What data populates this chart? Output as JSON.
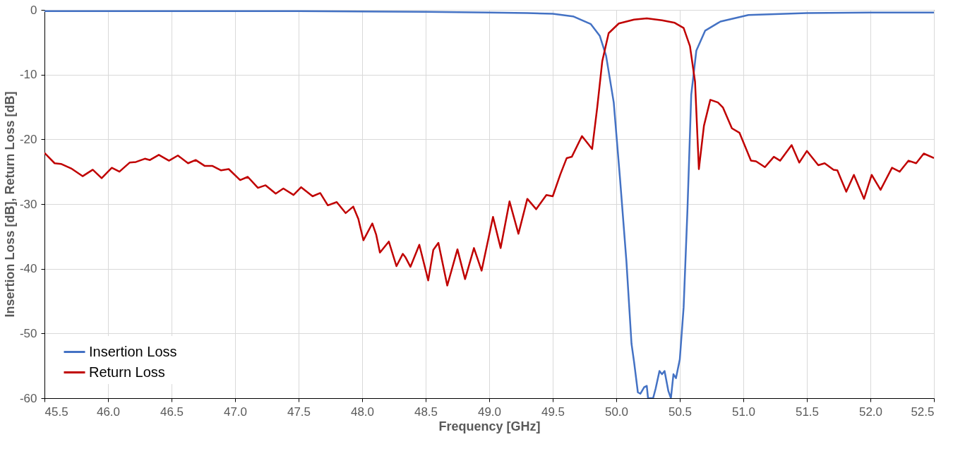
{
  "chart_data": {
    "type": "line",
    "xlabel": "Frequency [GHz]",
    "ylabel": "Insertion Loss [dB], Return Loss [dB]",
    "xlim": [
      45.5,
      52.5
    ],
    "ylim": [
      -60,
      0
    ],
    "xticks": [
      45.5,
      {
        "value": 46,
        "label": "46.0"
      },
      46.5,
      {
        "value": 47,
        "label": "47.0"
      },
      47.5,
      {
        "value": 48,
        "label": "48.0"
      },
      48.5,
      {
        "value": 49,
        "label": "49.0"
      },
      49.5,
      {
        "value": 50,
        "label": "50.0"
      },
      50.5,
      {
        "value": 51,
        "label": "51.0"
      },
      51.5,
      {
        "value": 52,
        "label": "52.0"
      },
      52.5
    ],
    "yticks": [
      -60,
      -50,
      -40,
      -30,
      -20,
      -10,
      0
    ],
    "grid": true,
    "legend": "bottom left",
    "line_style": "solid",
    "marker": "none",
    "series": [
      {
        "name": "Insertion Loss",
        "color": "#4472c4",
        "x": [
          45.5,
          46.5,
          47.5,
          48.5,
          49.0,
          49.3,
          49.5,
          49.66,
          49.8,
          49.87,
          49.92,
          49.98,
          50.03,
          50.08,
          50.12,
          50.14,
          50.17,
          50.19,
          50.22,
          50.24,
          50.25,
          50.29,
          50.31,
          50.34,
          50.36,
          50.38,
          50.41,
          50.43,
          50.45,
          50.47,
          50.5,
          50.53,
          50.56,
          50.59,
          50.63,
          50.7,
          50.82,
          51.04,
          51.5,
          52.0,
          52.5
        ],
        "values": [
          -0.2,
          -0.2,
          -0.2,
          -0.3,
          -0.4,
          -0.5,
          -0.6,
          -1.0,
          -2.2,
          -4.0,
          -7.1,
          -14.3,
          -26.2,
          -38.9,
          -51.6,
          -54.4,
          -59.1,
          -59.3,
          -58.3,
          -58.1,
          -60,
          -60,
          -58.5,
          -55.8,
          -56.3,
          -55.8,
          -58.9,
          -60,
          -56.3,
          -56.9,
          -54.0,
          -46.0,
          -31.0,
          -13.1,
          -6.3,
          -3.2,
          -1.8,
          -0.8,
          -0.5,
          -0.4,
          -0.4
        ]
      },
      {
        "name": "Return Loss",
        "color": "#c00000",
        "x": [
          45.5,
          45.58,
          45.63,
          45.71,
          45.8,
          45.88,
          45.95,
          46.03,
          46.09,
          46.17,
          46.22,
          46.29,
          46.33,
          46.4,
          46.48,
          46.55,
          46.63,
          46.69,
          46.76,
          46.82,
          46.89,
          46.95,
          47.04,
          47.1,
          47.18,
          47.24,
          47.32,
          47.38,
          47.46,
          47.52,
          47.61,
          47.67,
          47.73,
          47.8,
          47.87,
          47.93,
          47.97,
          48.01,
          48.08,
          48.11,
          48.14,
          48.21,
          48.27,
          48.32,
          48.34,
          48.38,
          48.45,
          48.52,
          48.56,
          48.6,
          48.67,
          48.75,
          48.81,
          48.88,
          48.94,
          49.03,
          49.09,
          49.16,
          49.23,
          49.3,
          49.37,
          49.45,
          49.5,
          49.56,
          49.61,
          49.65,
          49.73,
          49.81,
          49.85,
          49.89,
          49.94,
          50.02,
          50.14,
          50.24,
          50.36,
          50.46,
          50.53,
          50.58,
          50.62,
          50.65,
          50.69,
          50.74,
          50.8,
          50.84,
          50.91,
          50.97,
          51.06,
          51.1,
          51.17,
          51.24,
          51.29,
          51.38,
          51.44,
          51.5,
          51.59,
          51.64,
          51.71,
          51.74,
          51.81,
          51.87,
          51.95,
          52.01,
          52.08,
          52.17,
          52.23,
          52.3,
          52.36,
          52.42,
          52.5
        ],
        "values": [
          -22.1,
          -23.7,
          -23.8,
          -24.5,
          -25.7,
          -24.7,
          -26.0,
          -24.4,
          -25.0,
          -23.6,
          -23.5,
          -23.0,
          -23.2,
          -22.4,
          -23.3,
          -22.5,
          -23.7,
          -23.2,
          -24.1,
          -24.1,
          -24.8,
          -24.6,
          -26.3,
          -25.8,
          -27.5,
          -27.1,
          -28.4,
          -27.6,
          -28.6,
          -27.4,
          -28.8,
          -28.3,
          -30.2,
          -29.7,
          -31.4,
          -30.4,
          -32.3,
          -35.6,
          -33.0,
          -34.7,
          -37.5,
          -35.8,
          -39.6,
          -37.7,
          -38.2,
          -39.7,
          -36.3,
          -41.8,
          -37.1,
          -36.0,
          -42.6,
          -37.0,
          -41.6,
          -36.8,
          -40.3,
          -32.0,
          -36.8,
          -29.6,
          -34.6,
          -29.2,
          -30.8,
          -28.6,
          -28.8,
          -25.4,
          -22.9,
          -22.7,
          -19.5,
          -21.5,
          -15.1,
          -7.9,
          -3.6,
          -2.1,
          -1.5,
          -1.3,
          -1.6,
          -2.0,
          -2.8,
          -5.6,
          -11.1,
          -24.6,
          -17.9,
          -13.9,
          -14.3,
          -15.1,
          -18.3,
          -19.0,
          -23.3,
          -23.4,
          -24.3,
          -22.7,
          -23.3,
          -20.9,
          -23.6,
          -21.8,
          -24.0,
          -23.7,
          -24.7,
          -24.8,
          -28.1,
          -25.5,
          -29.2,
          -25.5,
          -27.8,
          -24.4,
          -25.0,
          -23.3,
          -23.7,
          -22.2,
          -22.9
        ]
      }
    ]
  }
}
